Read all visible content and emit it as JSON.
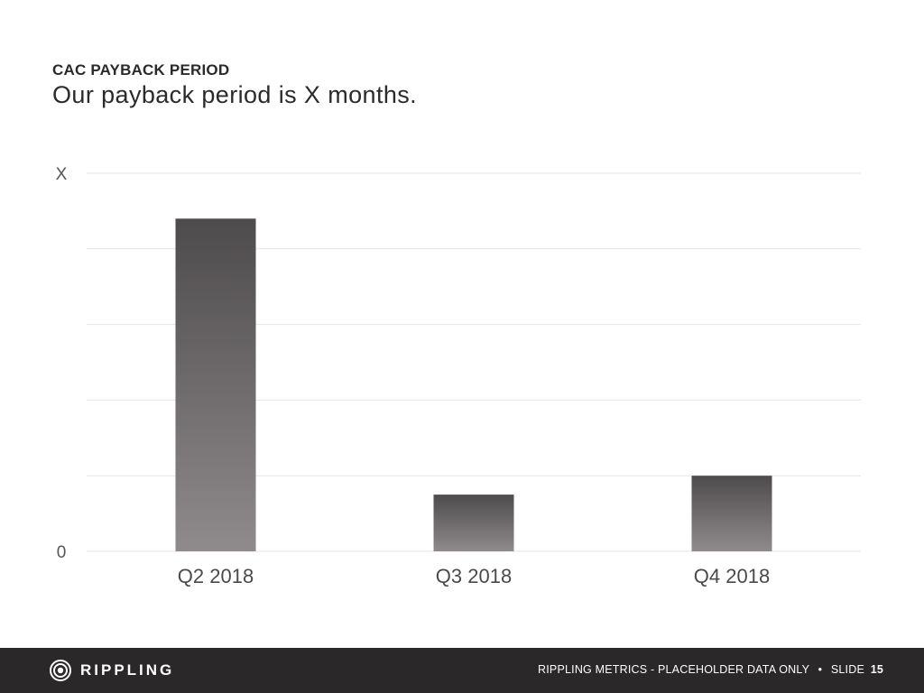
{
  "slide": {
    "label": "CAC PAYBACK PERIOD",
    "title": "Our payback period is X months."
  },
  "chart_data": {
    "type": "bar",
    "categories": [
      "Q2 2018",
      "Q3 2018",
      "Q4 2018"
    ],
    "values": [
      0.88,
      0.15,
      0.2
    ],
    "ylim": [
      0,
      1
    ],
    "yticks": [
      {
        "value": 0,
        "label": "0"
      },
      {
        "value": 1,
        "label": "X"
      }
    ],
    "gridlines": [
      0,
      0.2,
      0.4,
      0.6,
      0.8,
      1
    ],
    "grid": true,
    "legend": "none",
    "bar_color_top": "#4e4b4c",
    "bar_color_bottom": "#8f8b8c"
  },
  "footer": {
    "brand": "RIPPLING",
    "text": "RIPPLING METRICS - PLACEHOLDER DATA ONLY",
    "separator": "•",
    "slide_label": "SLIDE",
    "slide_number": "15",
    "background": "#2a2829"
  }
}
